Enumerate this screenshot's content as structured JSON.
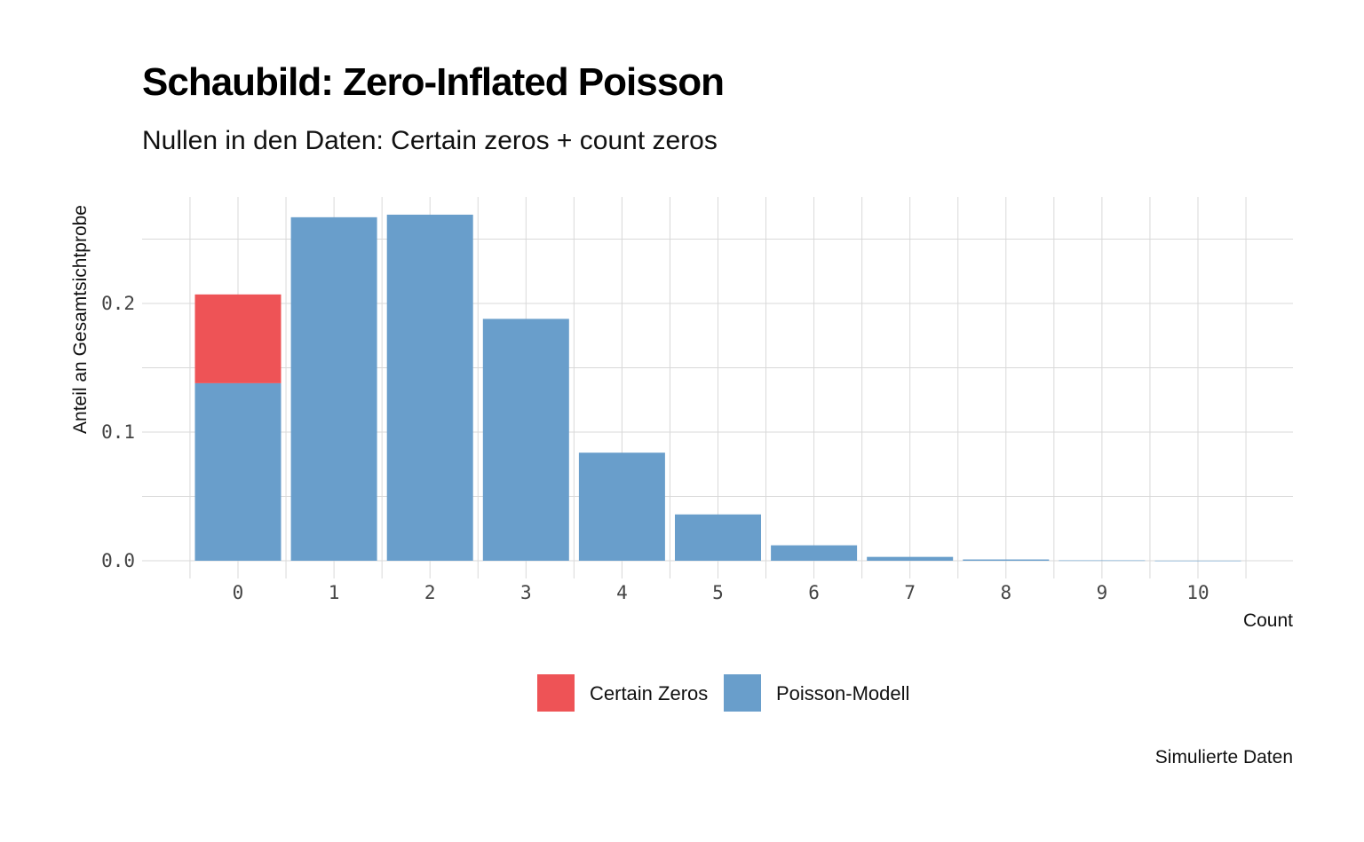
{
  "title": "Schaubild: Zero-Inflated Poisson",
  "subtitle": "Nullen in den Daten: Certain zeros + count zeros",
  "caption": "Simulierte Daten",
  "chart_data": {
    "type": "bar",
    "stacked": true,
    "categories": [
      "0",
      "1",
      "2",
      "3",
      "4",
      "5",
      "6",
      "7",
      "8",
      "9",
      "10"
    ],
    "series": [
      {
        "name": "Certain Zeros",
        "color": "#ee5356",
        "values": [
          0.069,
          0,
          0,
          0,
          0,
          0,
          0,
          0,
          0,
          0,
          0
        ]
      },
      {
        "name": "Poisson-Modell",
        "color": "#699ecb",
        "values": [
          0.138,
          0.267,
          0.269,
          0.188,
          0.084,
          0.036,
          0.012,
          0.003,
          0.001,
          0.0003,
          0.0001
        ]
      }
    ],
    "xlabel": "Count",
    "ylabel": "Anteil an Gesamtsichtprobe",
    "yticks": [
      "0.0",
      "0.1",
      "0.2"
    ],
    "ytick_values": [
      0,
      0.1,
      0.2
    ],
    "ylim": [
      0,
      0.28
    ],
    "grid": true,
    "legend": "bottom"
  }
}
